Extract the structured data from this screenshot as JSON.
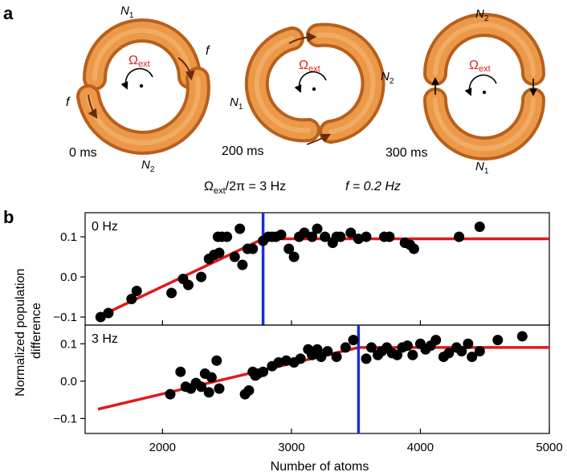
{
  "panel_a": {
    "label": "a",
    "omega_symbol": "Ω",
    "omega_sub": "ext",
    "rings": [
      {
        "top_label": "N",
        "top_sub": "1",
        "bottom_label": "N",
        "bottom_sub": "2",
        "time": "0 ms",
        "flow_label": "f"
      },
      {
        "left_label": "N",
        "left_sub": "1",
        "right_label": "N",
        "right_sub": "2",
        "time": "200 ms"
      },
      {
        "top_label": "N",
        "top_sub": "2",
        "bottom_label": "N",
        "bottom_sub": "1",
        "time": "300 ms"
      }
    ],
    "param_omega": "Ω",
    "param_omega_sub": "ext",
    "param_omega_rest": "/2π = 3 Hz",
    "param_f": "f = 0.2 Hz",
    "colors": {
      "ring": "#e8913a",
      "ring_dark": "#b85f1c",
      "omega": "#e0201b"
    }
  },
  "panel_b": {
    "label": "b",
    "ylabel_line1": "Normalized population",
    "ylabel_line2": "difference",
    "xlabel": "Number of atoms",
    "xticks": [
      "2000",
      "3000",
      "4000",
      "5000"
    ],
    "colors": {
      "fit": "#e01a1a",
      "threshold": "#1a2fd6",
      "points": "#000000"
    }
  },
  "chart_data": [
    {
      "type": "scatter",
      "title": "0 Hz",
      "xlabel": "Number of atoms",
      "ylabel": "Normalized population difference",
      "xlim": [
        1400,
        5000
      ],
      "ylim": [
        -0.12,
        0.16
      ],
      "yticks": [
        "0.1",
        "0.0",
        "−0.1"
      ],
      "threshold": 2780,
      "fit": {
        "x": [
          1500,
          2780,
          5000
        ],
        "y": [
          -0.1,
          0.095,
          0.095
        ]
      },
      "points": {
        "x": [
          1520,
          1580,
          1760,
          1800,
          2070,
          2160,
          2200,
          2300,
          2360,
          2400,
          2430,
          2440,
          2460,
          2500,
          2560,
          2600,
          2620,
          2660,
          2700,
          2780,
          2820,
          2850,
          2880,
          2920,
          2980,
          3020,
          3060,
          3100,
          3160,
          3200,
          3260,
          3320,
          3350,
          3380,
          3460,
          3520,
          3580,
          3720,
          3760,
          3880,
          3920,
          3950,
          4300,
          4460
        ],
        "y": [
          -0.1,
          -0.09,
          -0.055,
          -0.035,
          -0.04,
          -0.005,
          -0.02,
          0.0,
          0.045,
          0.055,
          0.1,
          0.06,
          0.1,
          0.1,
          0.05,
          0.12,
          0.03,
          0.07,
          0.07,
          0.09,
          0.1,
          0.1,
          0.1,
          0.105,
          0.07,
          0.05,
          0.1,
          0.11,
          0.1,
          0.12,
          0.1,
          0.085,
          0.1,
          0.1,
          0.11,
          0.095,
          0.1,
          0.1,
          0.1,
          0.085,
          0.08,
          0.07,
          0.1,
          0.125
        ]
      }
    },
    {
      "type": "scatter",
      "title": "3 Hz",
      "xlabel": "Number of atoms",
      "ylabel": "Normalized population difference",
      "xlim": [
        1400,
        5000
      ],
      "ylim": [
        -0.14,
        0.15
      ],
      "yticks": [
        "0.1",
        "0.0",
        "−0.1"
      ],
      "threshold": 3520,
      "fit": {
        "x": [
          1500,
          3520,
          5000
        ],
        "y": [
          -0.075,
          0.09,
          0.09
        ]
      },
      "points": {
        "x": [
          2060,
          2140,
          2180,
          2220,
          2260,
          2300,
          2330,
          2360,
          2380,
          2420,
          2440,
          2640,
          2670,
          2700,
          2720,
          2740,
          2780,
          2850,
          2900,
          2960,
          3020,
          3070,
          3130,
          3160,
          3200,
          3230,
          3280,
          3350,
          3420,
          3480,
          3580,
          3620,
          3670,
          3700,
          3740,
          3780,
          3820,
          3860,
          3900,
          3940,
          4000,
          4040,
          4080,
          4120,
          4180,
          4220,
          4280,
          4320,
          4370,
          4400,
          4460,
          4600,
          4790
        ],
        "y": [
          -0.035,
          0.025,
          -0.015,
          -0.02,
          -0.005,
          -0.015,
          0.02,
          -0.03,
          0.01,
          0.055,
          -0.02,
          -0.035,
          -0.025,
          0.025,
          0.015,
          0.02,
          0.025,
          0.04,
          0.05,
          0.055,
          0.05,
          0.06,
          0.085,
          0.07,
          0.085,
          0.065,
          0.08,
          0.065,
          0.09,
          0.11,
          0.06,
          0.09,
          0.07,
          0.08,
          0.09,
          0.075,
          0.07,
          0.09,
          0.095,
          0.07,
          0.1,
          0.085,
          0.095,
          0.11,
          0.065,
          0.075,
          0.09,
          0.08,
          0.1,
          0.065,
          0.08,
          0.11,
          0.12
        ]
      }
    }
  ]
}
